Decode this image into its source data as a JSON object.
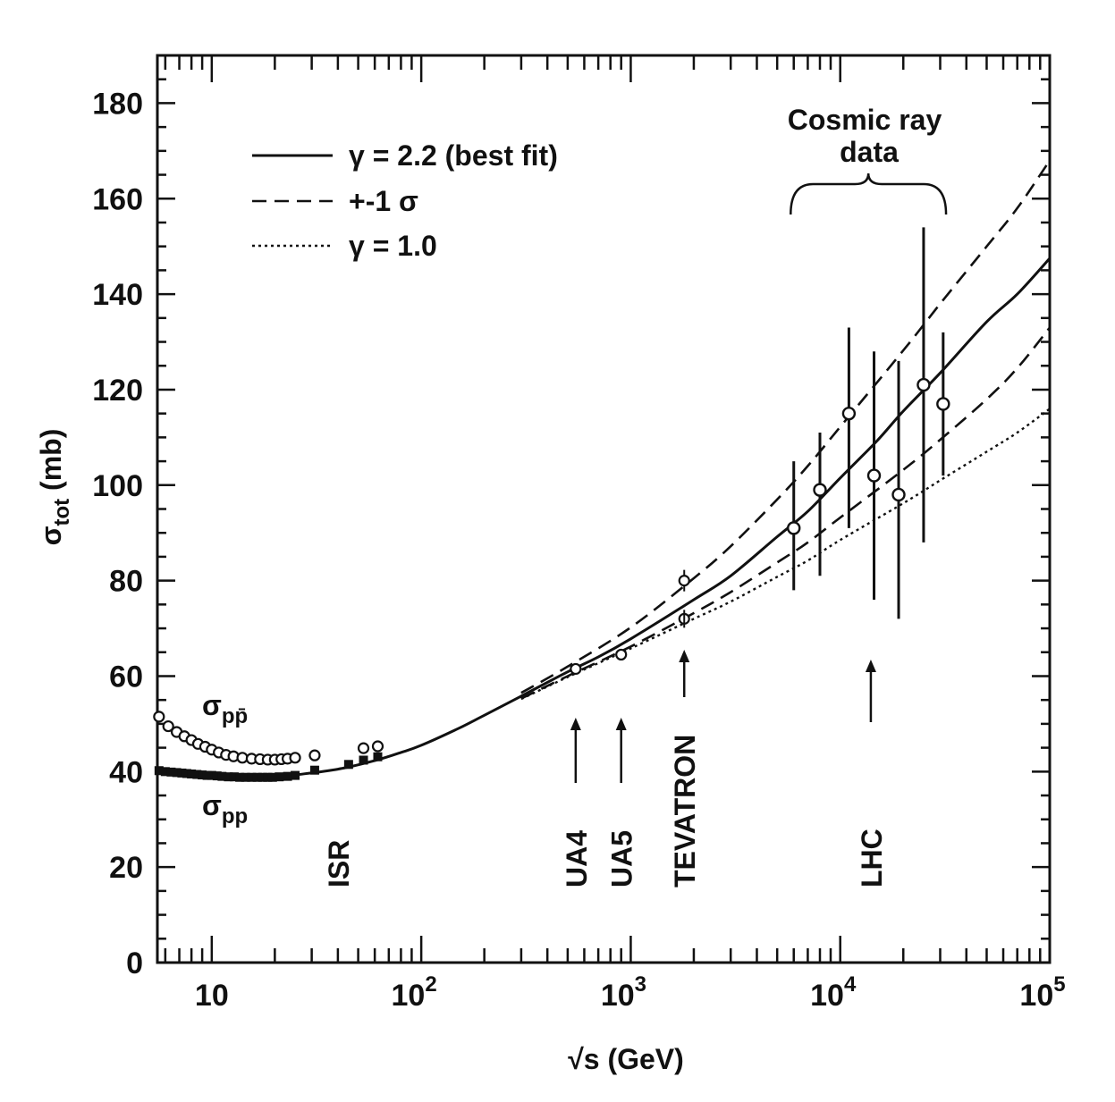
{
  "chart_data": {
    "type": "scatter",
    "x_scale": "log",
    "xlim": [
      5.5,
      100000
    ],
    "ylim": [
      0,
      190
    ],
    "xlabel": {
      "prefix": "√",
      "text": "s (GeV)"
    },
    "ylabel": {
      "sigma": "σ",
      "sub": "tot",
      "text": " (mb)"
    },
    "x_ticks": [
      {
        "value": 10,
        "base": "10",
        "exp": ""
      },
      {
        "value": 100,
        "base": "10",
        "exp": "2"
      },
      {
        "value": 1000,
        "base": "10",
        "exp": "3"
      },
      {
        "value": 10000,
        "base": "10",
        "exp": "4"
      },
      {
        "value": 100000,
        "base": "10",
        "exp": "5"
      }
    ],
    "y_ticks": [
      0,
      20,
      40,
      60,
      80,
      100,
      120,
      140,
      160,
      180
    ],
    "grid": false,
    "legend_position": "top-left",
    "legend": [
      {
        "style": "solid",
        "label": "γ = 2.2 (best fit)"
      },
      {
        "style": "dashed",
        "label": "+-1 σ"
      },
      {
        "style": "dotted",
        "label": "γ = 1.0"
      }
    ],
    "series": [
      {
        "style": "solid",
        "x": [
          25,
          40,
          60,
          80,
          100,
          150,
          200,
          300,
          500,
          700,
          1000,
          2000,
          3000,
          5000,
          7000,
          10000,
          15000,
          20000,
          30000,
          50000,
          70000,
          100000
        ],
        "y": [
          39.3,
          40.5,
          42.3,
          44.0,
          45.5,
          49.0,
          51.8,
          55.8,
          60.9,
          64.0,
          67.8,
          76.0,
          81.0,
          89.2,
          94.5,
          101.5,
          109.3,
          115.5,
          123.5,
          134.2,
          140.0,
          147.5
        ]
      },
      {
        "style": "dashed",
        "x": [
          300,
          500,
          1000,
          2000,
          3000,
          5000,
          7000,
          10000,
          20000,
          30000,
          50000,
          70000,
          100000
        ],
        "y": [
          56.5,
          62.0,
          70.2,
          80.5,
          87.2,
          97.0,
          104.0,
          112.2,
          128.2,
          138.0,
          150.0,
          158.0,
          168.0
        ]
      },
      {
        "style": "dashed",
        "x": [
          300,
          500,
          1000,
          2000,
          3000,
          5000,
          7000,
          10000,
          20000,
          30000,
          50000,
          70000,
          100000
        ],
        "y": [
          55.3,
          60.0,
          66.2,
          73.2,
          77.6,
          83.8,
          88.0,
          93.2,
          103.2,
          109.5,
          118.0,
          124.5,
          133.0
        ]
      },
      {
        "style": "dotted",
        "x": [
          300,
          500,
          1000,
          2000,
          3000,
          5000,
          7000,
          10000,
          20000,
          30000,
          50000,
          70000,
          100000
        ],
        "y": [
          55.2,
          59.8,
          65.8,
          72.0,
          75.6,
          80.8,
          84.2,
          88.5,
          96.2,
          101.0,
          107.0,
          111.0,
          116.0
        ]
      }
    ],
    "data_ppbar": {
      "x": [
        5.6,
        6.2,
        6.8,
        7.4,
        8.0,
        8.6,
        9.3,
        10.0,
        10.8,
        11.7,
        12.7,
        14.0,
        15.5,
        17.0,
        18.5,
        20.0,
        21.5,
        23.0,
        25.0,
        31.0,
        53.0,
        62.0,
        546,
        900,
        1800
      ],
      "y": [
        51.5,
        49.5,
        48.3,
        47.4,
        46.6,
        45.8,
        45.2,
        44.6,
        44.0,
        43.5,
        43.2,
        42.9,
        42.7,
        42.6,
        42.5,
        42.5,
        42.6,
        42.7,
        42.9,
        43.4,
        44.9,
        45.3,
        61.5,
        64.5,
        72.0
      ]
    },
    "data_pp": {
      "x": [
        5.6,
        6.0,
        6.4,
        6.8,
        7.2,
        7.6,
        8.0,
        8.5,
        9.0,
        9.5,
        10.0,
        10.6,
        11.2,
        12.0,
        12.8,
        13.6,
        14.5,
        15.5,
        16.5,
        17.5,
        18.5,
        19.5,
        21.0,
        23.0,
        25.0,
        31.0,
        45.0,
        53.0,
        62.0
      ],
      "y": [
        40.2,
        40.0,
        39.9,
        39.8,
        39.7,
        39.6,
        39.5,
        39.4,
        39.3,
        39.2,
        39.2,
        39.1,
        39.0,
        38.9,
        38.9,
        38.8,
        38.8,
        38.8,
        38.8,
        38.8,
        38.8,
        38.8,
        38.9,
        39.0,
        39.2,
        40.3,
        41.5,
        42.4,
        43.1
      ]
    },
    "data_tevatron_high": {
      "x": [
        1800
      ],
      "y": [
        80.0
      ]
    },
    "cosmic_ray_data": [
      {
        "x": 6000,
        "y": 91,
        "lo": 78,
        "hi": 105
      },
      {
        "x": 8000,
        "y": 99,
        "lo": 81,
        "hi": 111
      },
      {
        "x": 11000,
        "y": 115,
        "lo": 91,
        "hi": 133
      },
      {
        "x": 14500,
        "y": 102,
        "lo": 76,
        "hi": 128
      },
      {
        "x": 19000,
        "y": 98,
        "lo": 72,
        "hi": 126
      },
      {
        "x": 25000,
        "y": 121,
        "lo": 88,
        "hi": 154
      },
      {
        "x": 31000,
        "y": 117,
        "lo": 102,
        "hi": 132
      }
    ],
    "annotations": {
      "sigma_ppbar": {
        "sigma": "σ",
        "sub": "pp̄"
      },
      "sigma_pp": {
        "sigma": "σ",
        "sub": "pp"
      },
      "cosmic_ray": [
        "Cosmic ray",
        "data"
      ],
      "brace_range": [
        5800,
        32000
      ],
      "experiments": [
        {
          "label": "ISR",
          "x": 40
        },
        {
          "label": "UA4",
          "x": 546,
          "arrow": "up"
        },
        {
          "label": "UA5",
          "x": 900,
          "arrow": "up"
        },
        {
          "label": "TEVATRON",
          "x": 1800,
          "arrow": "up-right-of-label"
        },
        {
          "label": "LHC",
          "x": 14000,
          "arrow": "up"
        }
      ]
    }
  }
}
